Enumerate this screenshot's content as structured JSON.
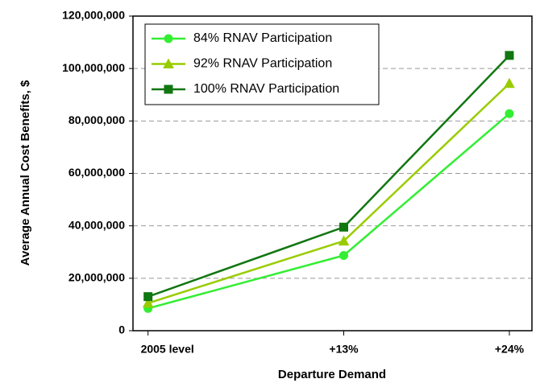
{
  "chart_data": {
    "type": "line",
    "x_label": "Departure Demand",
    "y_label": "Average Annual Cost Benefits, $",
    "x": [
      0,
      13,
      24
    ],
    "xlim": [
      -1,
      25.5
    ],
    "xticks": [
      {
        "value": 0,
        "label": "2005 level"
      },
      {
        "value": 13,
        "label": "+13%"
      },
      {
        "value": 24,
        "label": "+24%"
      }
    ],
    "ylim": [
      0,
      120000000
    ],
    "yticks": [
      0,
      {
        "value": 20000000,
        "label": "20,000,000"
      },
      {
        "value": 40000000,
        "label": "40,000,000"
      },
      {
        "value": 60000000,
        "label": "60,000,000"
      },
      {
        "value": 80000000,
        "label": "80,000,000"
      },
      {
        "value": 100000000,
        "label": "100,000,000"
      },
      {
        "value": 120000000,
        "label": "120,000,000"
      }
    ],
    "grid": true,
    "legend": "upper left",
    "series": [
      {
        "name": "84% RNAV Participation",
        "color": "#33ee33",
        "marker": "circle",
        "values": [
          8500000,
          28700000,
          82800000
        ]
      },
      {
        "name": "92% RNAV Participation",
        "color": "#99cc00",
        "marker": "triangle",
        "values": [
          10500000,
          34200000,
          94300000
        ]
      },
      {
        "name": "100% RNAV Participation",
        "color": "#117711",
        "marker": "square",
        "values": [
          13000000,
          39500000,
          105000000
        ]
      }
    ]
  }
}
